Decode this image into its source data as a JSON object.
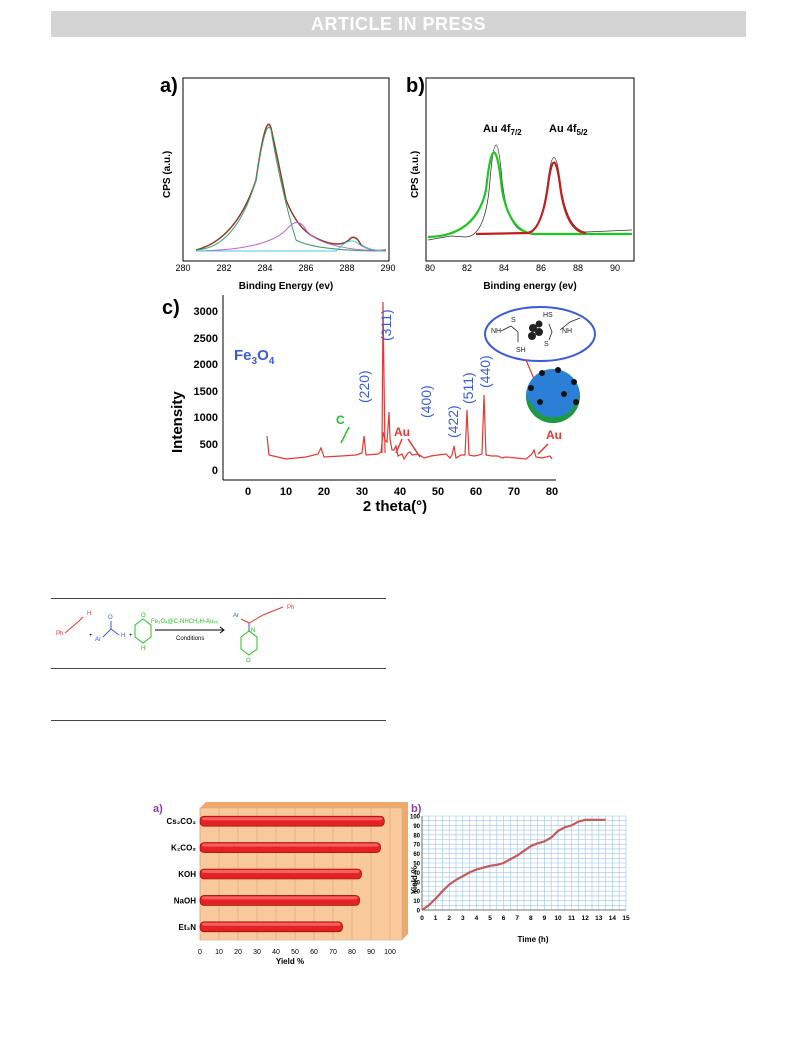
{
  "header": {
    "banner": "ARTICLE IN PRESS"
  },
  "colors": {
    "banner_bg": "#d4d4d4",
    "xrd": "#e53935",
    "hkl": "#3b5bdb",
    "xps_green": "#21c521",
    "xps_red": "#c41e1e",
    "bar_red": "#e52222",
    "bar_panel": "#f5c08e",
    "curve": "#c55a5a",
    "grid": "#9ec3e6"
  },
  "fig1": {
    "panel_a": {
      "label": "a)",
      "ylabel": "CPS (a.u.)",
      "xlabel": "Binding Energy (ev)",
      "xticks": [
        "280",
        "282",
        "284",
        "286",
        "288",
        "290"
      ]
    },
    "panel_b": {
      "label": "b)",
      "ylabel": "CPS (a.u.)",
      "xlabel": "Binding energy (ev)",
      "xticks": [
        "80",
        "82",
        "84",
        "86",
        "88",
        "90"
      ],
      "peak1": "Au 4f",
      "peak1_sub": "7/2",
      "peak2": "Au 4f",
      "peak2_sub": "5/2"
    },
    "panel_c": {
      "label": "c)",
      "ylabel": "Intensity",
      "xlabel": "2 theta(°)",
      "compound": "Fe",
      "compound_sub1": "3",
      "compound_mid": "O",
      "compound_sub2": "4",
      "yticks": [
        "0",
        "500",
        "1000",
        "1500",
        "2000",
        "2500",
        "3000"
      ],
      "xticks": [
        "0",
        "10",
        "20",
        "30",
        "40",
        "50",
        "60",
        "70",
        "80"
      ],
      "hkl": [
        "(220)",
        "(311)",
        "(400)",
        "(422)",
        "(511)",
        "(440)"
      ],
      "c_label": "C",
      "au_label1": "Au",
      "au_label2": "Au",
      "inset_nh1": "NH",
      "inset_s1": "S",
      "inset_sh": "SH",
      "inset_hs": "HS",
      "inset_s2": "S",
      "inset_nh2": "NH"
    }
  },
  "scheme": {
    "reagent": "Fe₃O₄@C-NHCH₂H-Au₅₅",
    "conditions": "Conditions",
    "ph1": "Ph",
    "ph2": "Ph",
    "ar1": "Ar",
    "ar2": "Ar",
    "o": "O",
    "h": "H",
    "n": "N",
    "plus": "+"
  },
  "chart_data": [
    {
      "type": "bar",
      "title": "",
      "label": "a)",
      "orientation": "horizontal",
      "categories": [
        "Cs₂CO₃",
        "K₂CO₃",
        "KOH",
        "NaOH",
        "Et₃N"
      ],
      "values": [
        97,
        95,
        85,
        84,
        75
      ],
      "xlabel": "Yield %",
      "xlim": [
        0,
        100
      ],
      "xticks": [
        "0",
        "10",
        "20",
        "30",
        "40",
        "50",
        "60",
        "70",
        "80",
        "90",
        "100"
      ]
    },
    {
      "type": "line",
      "title": "",
      "label": "b)",
      "x": [
        0,
        0.5,
        1,
        1.5,
        2,
        2.5,
        3,
        3.5,
        4,
        4.5,
        5,
        5.5,
        6,
        6.5,
        7,
        7.5,
        8,
        8.5,
        9,
        9.5,
        10,
        10.5,
        11,
        11.5,
        12,
        12.5,
        13,
        13.5
      ],
      "y": [
        0,
        5,
        12,
        20,
        27,
        32,
        36,
        40,
        43,
        45,
        47,
        48,
        50,
        54,
        58,
        63,
        68,
        71,
        73,
        77,
        84,
        88,
        90,
        94,
        96,
        96,
        96,
        96
      ],
      "xlabel": "Time (h)",
      "ylabel": "Yield %",
      "xlim": [
        0,
        15
      ],
      "ylim": [
        0,
        100
      ],
      "xticks": [
        "0",
        "1",
        "2",
        "3",
        "4",
        "5",
        "6",
        "7",
        "8",
        "9",
        "10",
        "11",
        "12",
        "13",
        "14",
        "15"
      ],
      "yticks": [
        "0",
        "10",
        "20",
        "30",
        "40",
        "50",
        "60",
        "70",
        "80",
        "90",
        "100"
      ],
      "grid": true
    }
  ]
}
